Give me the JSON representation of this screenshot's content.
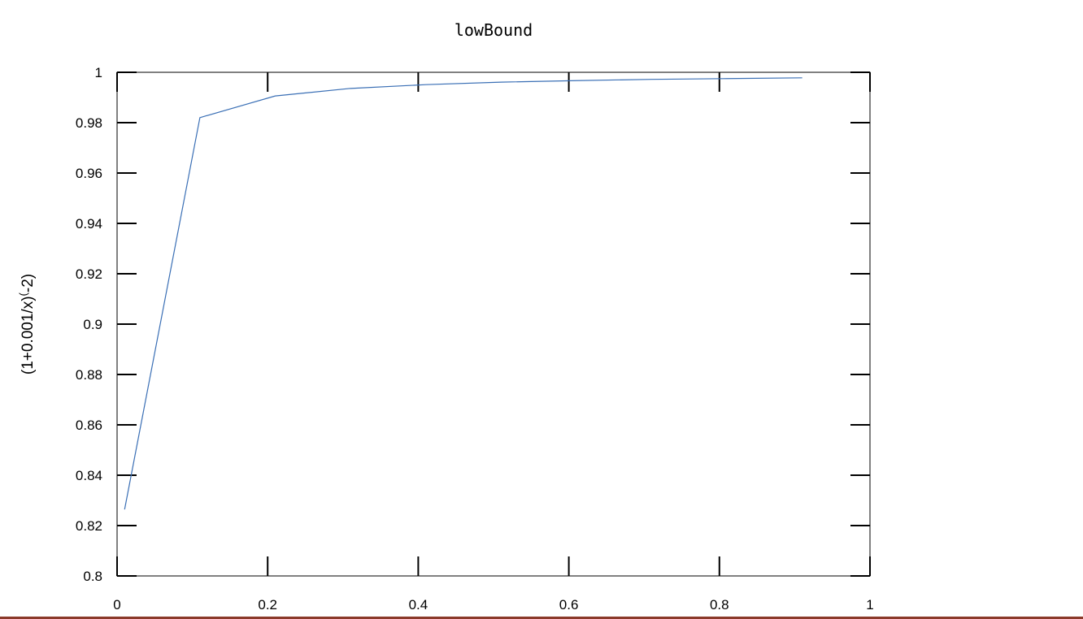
{
  "chart_data": {
    "type": "line",
    "title": "lowBound",
    "xlabel": "",
    "ylabel": "(1+0.001/x)^(-2)",
    "ylabel_parts": [
      "(1+0.001/x)",
      "(",
      "-2)"
    ],
    "xlim": [
      0,
      1
    ],
    "ylim": [
      0.8,
      1
    ],
    "xticks": [
      0,
      0.2,
      0.4,
      0.6,
      0.8,
      1
    ],
    "xtick_labels": [
      "0",
      "0.2",
      "0.4",
      "0.6",
      "0.8",
      "1"
    ],
    "yticks": [
      0.8,
      0.82,
      0.84,
      0.86,
      0.88,
      0.9,
      0.92,
      0.94,
      0.96,
      0.98,
      1
    ],
    "ytick_labels": [
      "0.8",
      "0.82",
      "0.84",
      "0.86",
      "0.88",
      "0.9",
      "0.92",
      "0.94",
      "0.96",
      "0.98",
      "1"
    ],
    "grid": false,
    "legend": "none",
    "series": [
      {
        "color": "#3a6fb5",
        "x": [
          0.01,
          0.11,
          0.21,
          0.31,
          0.41,
          0.51,
          0.61,
          0.71,
          0.81,
          0.91
        ],
        "y": [
          0.8264,
          0.982,
          0.9906,
          0.9936,
          0.9951,
          0.9961,
          0.9967,
          0.9972,
          0.9975,
          0.9978
        ]
      }
    ]
  },
  "colors": {
    "background": "#ffffff",
    "axis": "#000000",
    "bottom_rule": "#8b3a2a"
  }
}
